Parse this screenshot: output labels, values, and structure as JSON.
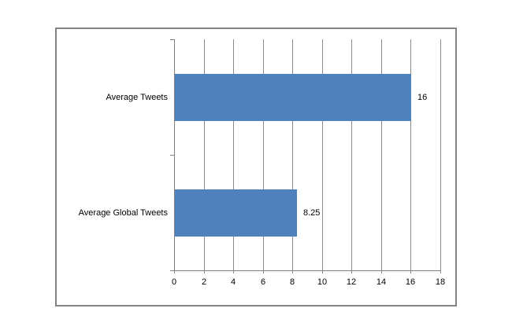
{
  "chart_data": {
    "type": "bar",
    "orientation": "horizontal",
    "title": "",
    "xlabel": "",
    "ylabel": "",
    "categories": [
      "Average Tweets",
      "Average Global Tweets"
    ],
    "values": [
      16,
      8.25
    ],
    "value_labels": [
      "16",
      "8.25"
    ],
    "x_ticks": [
      0,
      2,
      4,
      6,
      8,
      10,
      12,
      14,
      16,
      18
    ],
    "x_tick_labels": [
      "0",
      "2",
      "4",
      "6",
      "8",
      "10",
      "12",
      "14",
      "16",
      "18"
    ],
    "xlim": [
      0,
      18
    ],
    "grid": true,
    "legend": false,
    "data_labels": true,
    "colors": {
      "bar": "#4f81bd",
      "gridline": "#898989",
      "axis": "#808080",
      "chart_border": "#848484",
      "background": "#ffffff",
      "text": "#000000"
    }
  }
}
